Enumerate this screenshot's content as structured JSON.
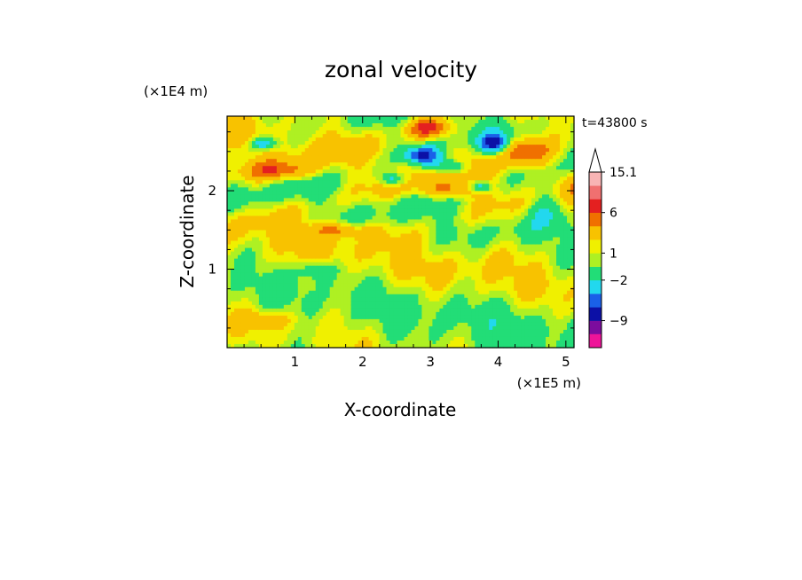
{
  "chart_data": {
    "type": "heatmap",
    "title": "zonal velocity",
    "xlabel": "X-coordinate",
    "ylabel": "Z-coordinate",
    "x_unit": "(×1E5 m)",
    "y_unit": "(×1E4 m)",
    "time_label": "t=43800 s",
    "xlim": [
      0,
      5.12
    ],
    "ylim": [
      0,
      2.95
    ],
    "x_ticks": [
      1,
      2,
      3,
      4,
      5
    ],
    "x_tick_labels": [
      "1",
      "2",
      "3",
      "4",
      "5"
    ],
    "y_ticks": [
      1,
      2
    ],
    "y_tick_labels": [
      "1",
      "2"
    ],
    "colorbar": {
      "labels": [
        {
          "value": 15.1,
          "text": "15.1"
        },
        {
          "value": 6,
          "text": "6"
        },
        {
          "value": 1,
          "text": "1"
        },
        {
          "value": -2,
          "text": "−2"
        },
        {
          "value": -9,
          "text": "−9"
        }
      ],
      "levels": [
        -15,
        -12,
        -9,
        -6,
        -4,
        -2,
        0,
        1,
        2,
        4,
        6,
        9,
        12,
        15.1
      ],
      "colors": [
        "#ee1499",
        "#b0109f",
        "#7c0c9e",
        "#0c10a6",
        "#1a60e8",
        "#22d8ee",
        "#22dd77",
        "#aef023",
        "#f0f000",
        "#f8c200",
        "#f07000",
        "#e42020",
        "#f07070",
        "#f8b4b4",
        "#ffffff"
      ]
    },
    "field_summary": "Zonal velocity contours: broad yellow (0–2) and green (−2–0) background, orange/red bands (4–9) in the upper layers, strong negative jets (blue, ≤ −6) near x≈2.5–3.4 and x≈3.8–4.1 at z≈2.1–2.6",
    "features": [
      {
        "x": 2.9,
        "z": 2.45,
        "value": -7,
        "sx": 0.28,
        "sz": 0.12
      },
      {
        "x": 3.3,
        "z": 2.3,
        "value": -6,
        "sx": 0.25,
        "sz": 0.1
      },
      {
        "x": 2.45,
        "z": 2.15,
        "value": -5,
        "sx": 0.18,
        "sz": 0.08
      },
      {
        "x": 3.95,
        "z": 2.6,
        "value": -8,
        "sx": 0.2,
        "sz": 0.12
      },
      {
        "x": 3.75,
        "z": 2.05,
        "value": -5,
        "sx": 0.12,
        "sz": 0.07
      },
      {
        "x": 0.55,
        "z": 2.6,
        "value": -5,
        "sx": 0.18,
        "sz": 0.07
      },
      {
        "x": 2.95,
        "z": 2.8,
        "value": 6,
        "sx": 0.3,
        "sz": 0.12
      },
      {
        "x": 4.4,
        "z": 2.5,
        "value": 5,
        "sx": 0.35,
        "sz": 0.18
      },
      {
        "x": 0.8,
        "z": 2.25,
        "value": 4,
        "sx": 0.5,
        "sz": 0.12
      },
      {
        "x": 1.6,
        "z": 1.5,
        "value": 4,
        "sx": 0.45,
        "sz": 0.1
      },
      {
        "x": 3.2,
        "z": 2.0,
        "value": 3,
        "sx": 0.45,
        "sz": 0.1
      },
      {
        "x": 1.3,
        "z": 1.0,
        "value": -3,
        "sx": 0.3,
        "sz": 0.12
      },
      {
        "x": 4.7,
        "z": 1.85,
        "value": -3,
        "sx": 0.3,
        "sz": 0.25
      },
      {
        "x": 0.6,
        "z": 0.35,
        "value": 3,
        "sx": 0.35,
        "sz": 0.1
      }
    ]
  }
}
